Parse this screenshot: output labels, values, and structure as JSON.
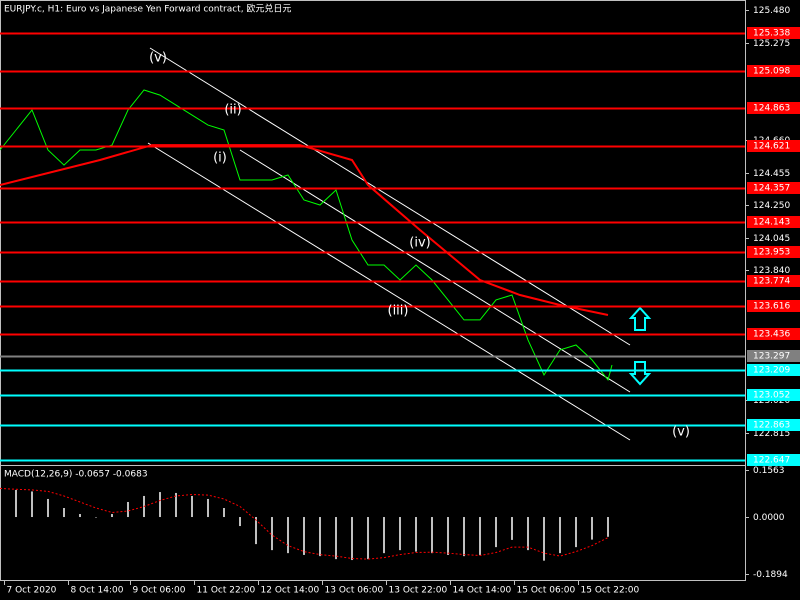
{
  "chart_data": [
    {
      "type": "line",
      "title": "EURJPY.c, H1:  Euro vs Japanese Yen Forward contract, 欧元兑日元",
      "xlim": [
        0,
        186.25
      ],
      "ylim": [
        122.613,
        125.543
      ],
      "yticks": [
        {
          "value": 125.48,
          "label": "125.480"
        },
        125.275,
        {
          "value": 124.66,
          "label": "124.660"
        },
        124.455,
        {
          "value": 124.25,
          "label": "124.250"
        },
        124.045,
        {
          "value": 123.84,
          "label": "123.840"
        },
        {
          "value": 123.02,
          "label": "123.020"
        },
        122.815
      ],
      "series": [
        {
          "color": "#00ff00",
          "x": [
            0,
            4,
            8,
            12,
            16,
            20,
            24,
            28,
            32,
            36,
            40,
            44,
            48,
            52,
            56,
            60,
            64,
            68,
            72,
            76,
            80,
            84,
            88,
            92,
            96,
            100,
            104,
            108,
            112,
            116,
            120,
            124,
            128,
            132,
            136,
            140,
            144,
            148,
            152,
            153
          ],
          "values": [
            124.598,
            124.724,
            124.85,
            124.598,
            124.503,
            124.598,
            124.598,
            124.629,
            124.85,
            124.976,
            124.944,
            124.881,
            124.818,
            124.755,
            124.724,
            124.409,
            124.409,
            124.409,
            124.44,
            124.283,
            124.251,
            124.346,
            124.031,
            123.873,
            123.873,
            123.779,
            123.873,
            123.779,
            123.653,
            123.527,
            123.527,
            123.653,
            123.684,
            123.401,
            123.18,
            123.338,
            123.369,
            123.275,
            123.149,
            123.243
          ]
        },
        {
          "color": "#ff0000",
          "x": [
            0,
            25,
            38,
            62,
            75,
            88,
            92,
            105,
            120,
            130,
            140,
            152
          ],
          "values": [
            124.377,
            124.535,
            124.629,
            124.629,
            124.629,
            124.535,
            124.377,
            124.094,
            123.779,
            123.684,
            123.621,
            123.558
          ]
        }
      ],
      "levels": [
        {
          "value": 125.338,
          "color": "#ff0000"
        },
        {
          "value": 125.098,
          "color": "#ff0000"
        },
        {
          "value": 124.863,
          "color": "#ff0000"
        },
        {
          "value": 124.621,
          "color": "#ff0000"
        },
        {
          "value": 124.357,
          "color": "#ff0000"
        },
        {
          "value": 124.143,
          "color": "#ff0000"
        },
        {
          "value": 123.953,
          "color": "#ff0000"
        },
        {
          "value": 123.774,
          "color": "#ff0000"
        },
        {
          "value": 123.616,
          "color": "#ff0000"
        },
        {
          "value": 123.436,
          "color": "#ff0000"
        },
        {
          "value": 123.297,
          "color": "#808080"
        },
        {
          "value": 123.209,
          "color": "#00ffff"
        },
        {
          "value": 123.052,
          "color": "#00ffff"
        },
        {
          "value": 122.863,
          "color": "#00ffff"
        },
        {
          "value": 122.647,
          "color": "#00ffff"
        }
      ],
      "annotations": [
        "(v)",
        "(ii)",
        "(i)",
        "(iv)",
        "(iii)",
        "(v)"
      ]
    },
    {
      "type": "bar",
      "title": "MACD(12,26,9) -0.0657 -0.0683",
      "xlim": [
        0,
        186.25
      ],
      "ylim": [
        -0.2093,
        0.1729
      ],
      "yticks": [
        0.1563,
        {
          "value": 0,
          "label": "0.0000"
        },
        -0.1894
      ],
      "xticks": [
        {
          "value": 1,
          "label": "7 Oct 2020"
        },
        {
          "value": 17,
          "label": "8 Oct 14:00"
        },
        {
          "value": 32.5,
          "label": "9 Oct 06:00"
        },
        {
          "value": 48.5,
          "label": "11 Oct 22:00"
        },
        {
          "value": 64.5,
          "label": "12 Oct 14:00"
        },
        {
          "value": 80.5,
          "label": "13 Oct 06:00"
        },
        {
          "value": 96.5,
          "label": "13 Oct 22:00"
        },
        {
          "value": 112.5,
          "label": "14 Oct 14:00"
        },
        {
          "value": 128.5,
          "label": "15 Oct 06:00"
        },
        {
          "value": 144.5,
          "label": "15 Oct 22:00"
        }
      ],
      "x": [
        0,
        4,
        8,
        12,
        16,
        20,
        24,
        28,
        32,
        36,
        40,
        44,
        48,
        52,
        56,
        60,
        64,
        68,
        72,
        76,
        80,
        84,
        88,
        92,
        96,
        100,
        104,
        108,
        112,
        116,
        120,
        124,
        128,
        132,
        136,
        140,
        144,
        148,
        152
      ],
      "series": [
        {
          "type": "bar",
          "color": "#c0c0c0",
          "values": [
            0.09,
            0.09,
            0.085,
            0.06,
            0.03,
            0.01,
            0.0,
            0.01,
            0.05,
            0.07,
            0.083,
            0.08,
            0.07,
            0.06,
            0.03,
            -0.03,
            -0.09,
            -0.11,
            -0.12,
            -0.126,
            -0.13,
            -0.14,
            -0.143,
            -0.14,
            -0.12,
            -0.11,
            -0.115,
            -0.12,
            -0.126,
            -0.13,
            -0.126,
            -0.1,
            -0.076,
            -0.11,
            -0.145,
            -0.12,
            -0.1,
            -0.075,
            -0.0657
          ]
        },
        {
          "type": "line",
          "color": "#ff0000",
          "values": [
            0.095,
            0.092,
            0.09,
            0.085,
            0.07,
            0.05,
            0.03,
            0.015,
            0.02,
            0.035,
            0.055,
            0.07,
            0.075,
            0.073,
            0.06,
            0.035,
            -0.01,
            -0.06,
            -0.095,
            -0.115,
            -0.125,
            -0.13,
            -0.138,
            -0.14,
            -0.135,
            -0.125,
            -0.118,
            -0.117,
            -0.12,
            -0.125,
            -0.128,
            -0.118,
            -0.1,
            -0.1,
            -0.12,
            -0.13,
            -0.115,
            -0.095,
            -0.0683
          ]
        }
      ]
    }
  ]
}
